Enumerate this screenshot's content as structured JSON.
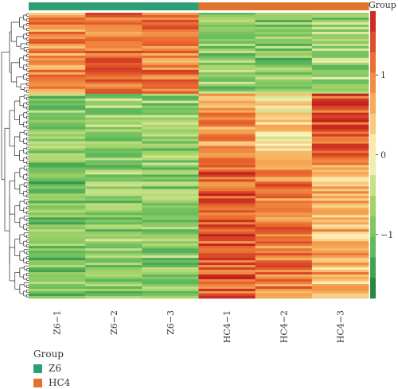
{
  "chart_data": {
    "type": "heatmap",
    "columns": [
      "Z6−1",
      "Z6−2",
      "Z6−3",
      "HC4−1",
      "HC4−2",
      "HC4−3"
    ],
    "column_groups": [
      "Z6",
      "Z6",
      "Z6",
      "HC4",
      "HC4",
      "HC4"
    ],
    "row_blocks": [
      {
        "rows": 34,
        "values": [
          0.9,
          1.1,
          1.0,
          -0.8,
          -0.9,
          -0.7
        ]
      },
      {
        "rows": 30,
        "values": [
          -0.9,
          -0.7,
          -0.8,
          0.8,
          0.2,
          1.4
        ]
      },
      {
        "rows": 56,
        "values": [
          -1.0,
          -0.8,
          -0.8,
          1.3,
          1.0,
          0.6
        ]
      }
    ],
    "color_scale": {
      "stops": [
        "#1a7a3e",
        "#5cb85c",
        "#a8d46a",
        "#fff6c0",
        "#f6b05a",
        "#ea6a2e",
        "#c21f1f"
      ],
      "min": -1.8,
      "max": 1.8,
      "ticks": [
        "1",
        "0",
        "−1"
      ],
      "tick_values": [
        1,
        0,
        -1
      ]
    },
    "group_annotation_title": "Group",
    "legend": {
      "title": "Group",
      "items": [
        {
          "label": "Z6",
          "color": "#2e9e74"
        },
        {
          "label": "HC4",
          "color": "#e0732e"
        }
      ]
    }
  }
}
